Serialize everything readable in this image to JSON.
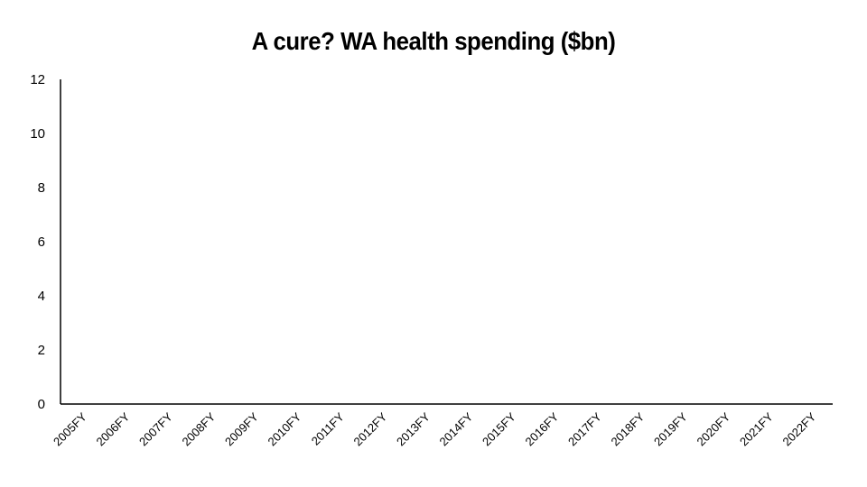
{
  "chart_data": {
    "type": "bar",
    "title": "A cure? WA health spending ($bn)",
    "xlabel": "",
    "ylabel": "",
    "categories": [
      "2005FY",
      "2006FY",
      "2007FY",
      "2008FY",
      "2009FY",
      "2010FY",
      "2011FY",
      "2012FY",
      "2013FY",
      "2014FY",
      "2015FY",
      "2016FY",
      "2017FY",
      "2018FY",
      "2019FY",
      "2020FY",
      "2021FY",
      "2022FY"
    ],
    "ylim": [
      0,
      12
    ],
    "yticks": [
      "0",
      "2",
      "4",
      "6",
      "8",
      "10",
      "12"
    ],
    "grid": false,
    "colors": {
      "axis": "#000000",
      "text": "#000000"
    }
  }
}
